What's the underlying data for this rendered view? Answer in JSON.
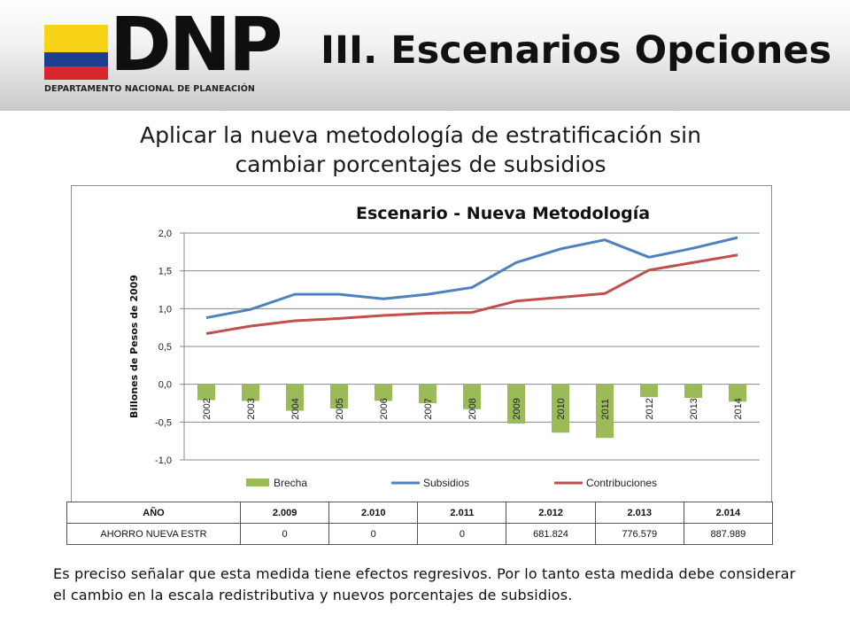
{
  "header": {
    "logo_text": "DNP",
    "logo_subtitle": "DEPARTAMENTO NACIONAL DE PLANEACIÓN",
    "title": "III. Escenarios Opciones"
  },
  "subtitle_line1": "Aplicar la nueva metodología de estratificación sin",
  "subtitle_line2": "cambiar porcentajes de subsidios",
  "chart_data": {
    "type": "line",
    "title": "Escenario - Nueva Metodología",
    "ylabel": "Billones de Pesos de 2009",
    "xlabel": "",
    "ylim": [
      -1.0,
      2.0
    ],
    "yticks": [
      "2,0",
      "1,5",
      "1,0",
      "0,5",
      "0,0",
      "-0,5",
      "-1,0"
    ],
    "grid": "horizontal",
    "legend_position": "bottom",
    "categories": [
      "2002",
      "2003",
      "2004",
      "2005",
      "2006",
      "2007",
      "2008",
      "2009",
      "2010",
      "2011",
      "2012",
      "2013",
      "2014"
    ],
    "series": [
      {
        "name": "Brecha",
        "kind": "bar",
        "color": "#9bbb59",
        "values": [
          -0.21,
          -0.22,
          -0.35,
          -0.32,
          -0.22,
          -0.25,
          -0.33,
          -0.52,
          -0.64,
          -0.71,
          -0.17,
          -0.18,
          -0.23
        ]
      },
      {
        "name": "Subsidios",
        "kind": "line",
        "color": "#4f81bd",
        "values": [
          0.88,
          0.99,
          1.19,
          1.19,
          1.13,
          1.19,
          1.28,
          1.61,
          1.79,
          1.91,
          1.68,
          1.8,
          1.94
        ]
      },
      {
        "name": "Contribuciones",
        "kind": "line",
        "color": "#c0504d",
        "values": [
          0.67,
          0.77,
          0.84,
          0.87,
          0.91,
          0.94,
          0.95,
          1.1,
          1.15,
          1.2,
          1.51,
          1.61,
          1.71
        ]
      }
    ]
  },
  "table": {
    "header": [
      "AÑO",
      "2.009",
      "2.010",
      "2.011",
      "2.012",
      "2.013",
      "2.014"
    ],
    "row": [
      "AHORRO NUEVA ESTR",
      "0",
      "0",
      "0",
      "681.824",
      "776.579",
      "887.989"
    ]
  },
  "note": "Es preciso señalar que esta medida tiene efectos regresivos. Por lo tanto esta medida debe considerar el cambio en la escala redistributiva y nuevos porcentajes de subsidios."
}
